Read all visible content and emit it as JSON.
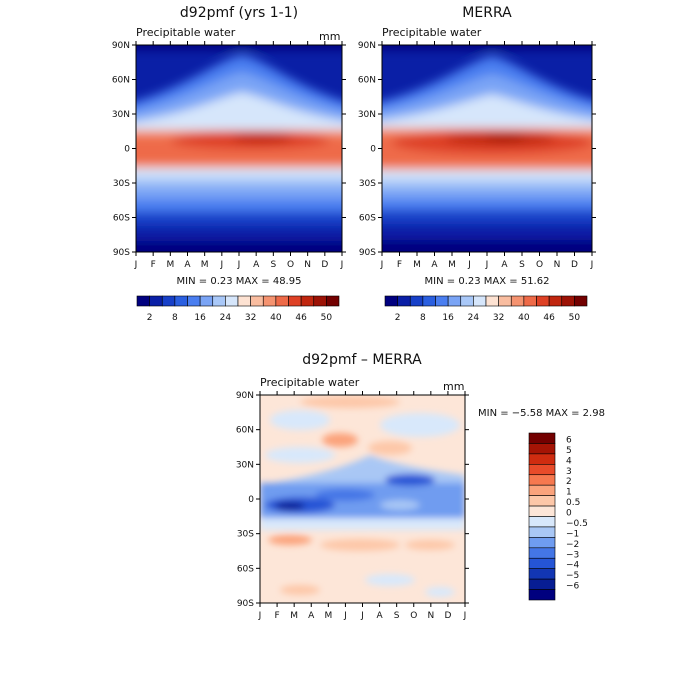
{
  "chart_data": [
    {
      "type": "heatmap",
      "title": "d92pmf (yrs 1-1)",
      "subtitle": "Precipitable water",
      "units": "mm",
      "x_ticks": [
        "J",
        "F",
        "M",
        "A",
        "M",
        "J",
        "J",
        "A",
        "S",
        "O",
        "N",
        "D",
        "J"
      ],
      "y_ticks": [
        "90N",
        "60N",
        "30N",
        "0",
        "30S",
        "60S",
        "90S"
      ],
      "stats": "MIN =    0.23  MAX =   48.95",
      "min": 0.23,
      "max": 48.95,
      "colorbar": {
        "labels": [
          "2",
          "8",
          "16",
          "24",
          "32",
          "40",
          "46",
          "50"
        ],
        "colors": [
          "#00007f",
          "#0a1fa6",
          "#1740c8",
          "#2a5fe0",
          "#4a7ef0",
          "#7aa4f5",
          "#a9c8f8",
          "#d6e6fb",
          "#fde2d2",
          "#f9bda0",
          "#f59370",
          "#ee6a48",
          "#de4125",
          "#c0260f",
          "#9c1205",
          "#730000"
        ]
      }
    },
    {
      "type": "heatmap",
      "title": "MERRA",
      "subtitle": "Precipitable water",
      "units": "",
      "x_ticks": [
        "J",
        "F",
        "M",
        "A",
        "M",
        "J",
        "J",
        "A",
        "S",
        "O",
        "N",
        "D",
        "J"
      ],
      "y_ticks": [
        "90N",
        "60N",
        "30N",
        "0",
        "30S",
        "60S",
        "90S"
      ],
      "stats": "MIN =    0.23  MAX =   51.62",
      "min": 0.23,
      "max": 51.62,
      "colorbar": {
        "labels": [
          "2",
          "8",
          "16",
          "24",
          "32",
          "40",
          "46",
          "50"
        ],
        "colors": [
          "#00007f",
          "#0a1fa6",
          "#1740c8",
          "#2a5fe0",
          "#4a7ef0",
          "#7aa4f5",
          "#a9c8f8",
          "#d6e6fb",
          "#fde2d2",
          "#f9bda0",
          "#f59370",
          "#ee6a48",
          "#de4125",
          "#c0260f",
          "#9c1205",
          "#730000"
        ]
      }
    },
    {
      "type": "heatmap",
      "title": "d92pmf – MERRA",
      "subtitle": "Precipitable water",
      "units": "mm",
      "x_ticks": [
        "J",
        "F",
        "M",
        "A",
        "M",
        "J",
        "J",
        "A",
        "S",
        "O",
        "N",
        "D",
        "J"
      ],
      "y_ticks": [
        "90N",
        "60N",
        "30N",
        "0",
        "30S",
        "60S",
        "90S"
      ],
      "stats": "MIN =   −5.58  MAX =    2.98",
      "min": -5.58,
      "max": 2.98,
      "colorbar": {
        "labels": [
          "6",
          "5",
          "4",
          "3",
          "2",
          "1",
          "0.5",
          "0",
          "−0.5",
          "−1",
          "−2",
          "−3",
          "−4",
          "−5",
          "−6"
        ],
        "colors": [
          "#730000",
          "#a51405",
          "#cf2c10",
          "#e84b2a",
          "#f6784f",
          "#fba37c",
          "#fdc7a8",
          "#fde6d8",
          "#d8e8fb",
          "#a9c7f5",
          "#6f9cf0",
          "#4476e6",
          "#2555d6",
          "#1236b3",
          "#071d93",
          "#00007f"
        ]
      }
    }
  ]
}
